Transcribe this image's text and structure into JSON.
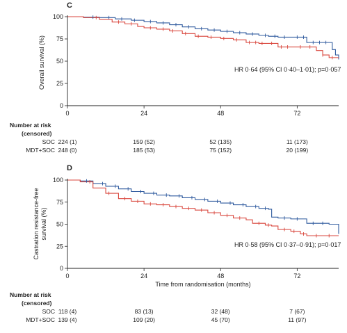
{
  "colors": {
    "soc": "#2f5a9e",
    "mdt_soc": "#d9463c",
    "axis": "#222222"
  },
  "risk_header": [
    "Number at risk",
    "(censored)"
  ],
  "chart_data": [
    {
      "id": "C",
      "type": "line",
      "panel_label": "C",
      "ylabel": "Overall survival (%)",
      "xlabel": "",
      "x_ticks": [
        0,
        24,
        48,
        72
      ],
      "y_ticks": [
        0,
        25,
        50,
        75,
        100
      ],
      "xlim": [
        0,
        85
      ],
      "ylim": [
        0,
        100
      ],
      "annotation": "HR 0·64 (95% CI 0·40–1·01); p=0·057",
      "series": [
        {
          "name": "SOC",
          "color": "#2f5a9e",
          "x": [
            0,
            5,
            10,
            15,
            20,
            24,
            28,
            32,
            36,
            40,
            44,
            48,
            52,
            56,
            60,
            63,
            66,
            70,
            75,
            80,
            83,
            84,
            85
          ],
          "y": [
            100,
            99.5,
            99,
            97.5,
            96,
            94.5,
            93,
            91,
            88.5,
            86.5,
            85,
            83.5,
            82,
            80.5,
            79,
            78,
            77,
            77,
            71,
            71,
            63,
            57,
            52
          ]
        },
        {
          "name": "MDT+SOC",
          "color": "#d9463c",
          "x": [
            0,
            5,
            10,
            14,
            18,
            22,
            24,
            28,
            32,
            36,
            40,
            44,
            48,
            52,
            56,
            60,
            63,
            66,
            70,
            75,
            78,
            80,
            82,
            85
          ],
          "y": [
            100,
            99,
            97,
            94,
            92,
            89,
            87.5,
            86,
            84,
            81,
            78,
            77,
            75.5,
            74,
            71,
            70,
            70,
            66,
            66,
            66,
            62,
            57,
            54,
            54
          ]
        }
      ],
      "censor_marks": [
        {
          "series": "SOC",
          "x": [
            8,
            13,
            17,
            21,
            26,
            30,
            34,
            38,
            42,
            46,
            50,
            54,
            58,
            62,
            65,
            68,
            72,
            74,
            77,
            79,
            81
          ]
        },
        {
          "series": "MDT+SOC",
          "x": [
            9,
            16,
            20,
            26,
            30,
            33,
            37,
            41,
            45,
            49,
            53,
            57,
            59,
            61,
            64,
            67,
            69,
            73,
            76,
            80,
            83
          ]
        }
      ],
      "risk_table": [
        {
          "label": "SOC",
          "values": [
            "224 (1)",
            "159 (52)",
            "52 (135)",
            "11 (173)"
          ]
        },
        {
          "label": "MDT+SOC",
          "values": [
            "248 (0)",
            "185 (53)",
            "75 (152)",
            "20 (199)"
          ]
        }
      ]
    },
    {
      "id": "D",
      "type": "line",
      "panel_label": "D",
      "ylabel": "Castration resistance-free survival (%)",
      "ylabel_lines": [
        "Castration resistance-free",
        "survival (%)"
      ],
      "xlabel": "Time from randomisation (months)",
      "x_ticks": [
        0,
        24,
        48,
        72
      ],
      "y_ticks": [
        0,
        25,
        50,
        75,
        100
      ],
      "xlim": [
        0,
        85
      ],
      "ylim": [
        0,
        100
      ],
      "annotation": "HR 0·58 (95% CI 0·37–0·91); p=0·017",
      "series": [
        {
          "name": "SOC",
          "color": "#2f5a9e",
          "x": [
            0,
            4,
            8,
            12,
            16,
            20,
            24,
            28,
            32,
            36,
            40,
            44,
            48,
            52,
            56,
            60,
            63,
            64,
            66,
            70,
            75,
            82,
            85
          ],
          "y": [
            100,
            99,
            96,
            93,
            90,
            87,
            85,
            83,
            82,
            80,
            78,
            76,
            74,
            72,
            70,
            68,
            67,
            58,
            57,
            56,
            51,
            50,
            39
          ]
        },
        {
          "name": "MDT+SOC",
          "color": "#d9463c",
          "x": [
            0,
            4,
            8,
            12,
            16,
            20,
            24,
            28,
            32,
            36,
            40,
            44,
            48,
            52,
            56,
            58,
            62,
            64,
            66,
            70,
            73,
            75,
            85
          ],
          "y": [
            100,
            98,
            91,
            85,
            79,
            76,
            73,
            72,
            70,
            68,
            66,
            63,
            60,
            57,
            55,
            51,
            49,
            48,
            44,
            42,
            39,
            37,
            37
          ]
        }
      ],
      "censor_marks": [
        {
          "series": "SOC",
          "x": [
            6,
            11,
            15,
            19,
            23,
            27,
            31,
            35,
            39,
            43,
            47,
            51,
            55,
            59,
            62,
            68,
            72,
            77,
            80
          ]
        },
        {
          "series": "MDT+SOC",
          "x": [
            7,
            13,
            18,
            22,
            26,
            30,
            34,
            38,
            42,
            46,
            50,
            54,
            60,
            63,
            68,
            71,
            74,
            78,
            82
          ]
        }
      ],
      "risk_table": [
        {
          "label": "SOC",
          "values": [
            "118 (4)",
            "83 (13)",
            "32 (48)",
            "7 (67)"
          ]
        },
        {
          "label": "MDT+SOC",
          "values": [
            "139 (4)",
            "109 (20)",
            "45 (70)",
            "11 (97)"
          ]
        }
      ]
    }
  ]
}
